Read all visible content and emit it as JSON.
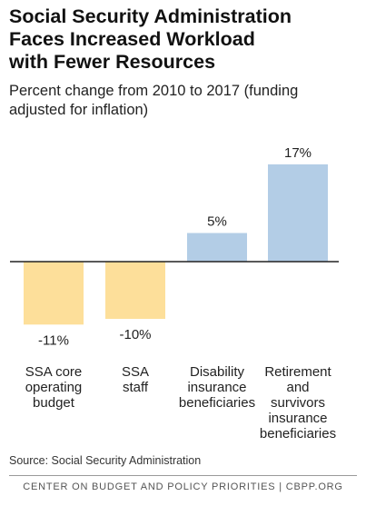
{
  "title_line1": "Social Security Administration",
  "title_line2": "Faces Increased Workload",
  "title_line3": "with Fewer Resources",
  "subtitle_line1": "Percent change from 2010 to 2017 (funding",
  "subtitle_line2": "adjusted for inflation)",
  "source": "Source: Social Security Administration",
  "footer": "CENTER ON BUDGET AND POLICY PRIORITIES | CBPP.ORG",
  "colors": {
    "negative": "#fddf9a",
    "positive": "#b3cde6",
    "baseline": "#222222"
  },
  "chart_data": {
    "type": "bar",
    "title": "Social Security Administration Faces Increased Workload with Fewer Resources",
    "subtitle": "Percent change from 2010 to 2017 (funding adjusted for inflation)",
    "categories": [
      [
        "SSA core",
        "operating",
        "budget"
      ],
      [
        "SSA",
        "staff"
      ],
      [
        "Disability",
        "insurance",
        "beneficiaries"
      ],
      [
        "Retirement",
        "and",
        "survivors",
        "insurance",
        "beneficiaries"
      ]
    ],
    "values": [
      -11,
      -10,
      5,
      17
    ],
    "value_labels": [
      "-11%",
      "-10%",
      "5%",
      "17%"
    ],
    "ylim": [
      -12,
      19
    ],
    "grid": false,
    "legend": "none"
  }
}
